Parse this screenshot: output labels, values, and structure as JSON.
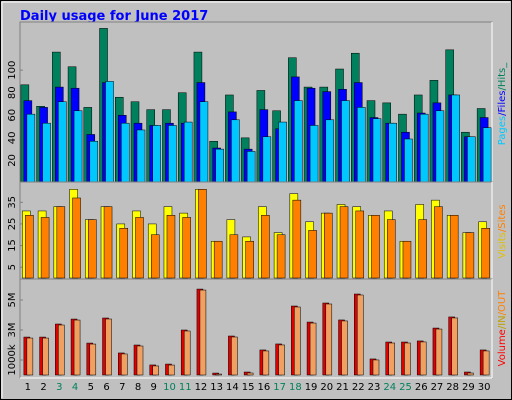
{
  "chart_data": [
    {
      "type": "bar",
      "title": "Daily usage for June 2017",
      "ylim": [
        0,
        140
      ],
      "yticks": [
        20,
        40,
        60,
        80,
        100
      ],
      "y_label_parts": [
        {
          "text": "Pages",
          "color": "#00c8ff"
        },
        {
          "text": "/",
          "color": "#0000ff"
        },
        {
          "text": "Files",
          "color": "#0000ff"
        },
        {
          "text": "/",
          "color": "#00805c"
        },
        {
          "text": "Hits_",
          "color": "#00805c"
        }
      ],
      "series": [
        {
          "name": "Hits",
          "color": "#00805c",
          "values": [
            87,
            68,
            116,
            103,
            67,
            137,
            76,
            72,
            65,
            65,
            80,
            116,
            37,
            78,
            40,
            82,
            64,
            111,
            85,
            85,
            101,
            115,
            73,
            71,
            61,
            78,
            91,
            118,
            45,
            66
          ]
        },
        {
          "name": "Files",
          "color": "#0000ff",
          "values": [
            73,
            67,
            85,
            84,
            43,
            89,
            60,
            53,
            51,
            53,
            53,
            89,
            31,
            63,
            30,
            65,
            48,
            94,
            84,
            81,
            83,
            89,
            58,
            53,
            45,
            62,
            71,
            78,
            41,
            58
          ]
        },
        {
          "name": "Pages",
          "color": "#00c8ff",
          "values": [
            61,
            53,
            72,
            64,
            37,
            90,
            53,
            47,
            51,
            51,
            54,
            72,
            30,
            56,
            28,
            41,
            54,
            73,
            51,
            56,
            73,
            67,
            57,
            53,
            39,
            61,
            64,
            78,
            41,
            49
          ]
        }
      ]
    },
    {
      "type": "bar",
      "ylim": [
        0,
        43
      ],
      "yticks": [
        5,
        15,
        25,
        35
      ],
      "y_label_parts": [
        {
          "text": "Visits",
          "color": "#e0c000"
        },
        {
          "text": "/",
          "color": "#ff8000"
        },
        {
          "text": "Sites",
          "color": "#ff8000"
        }
      ],
      "series": [
        {
          "name": "Visits",
          "color": "#ffff00",
          "values": [
            31,
            31,
            33,
            41,
            27,
            33,
            25,
            31,
            25,
            33,
            30,
            41,
            17,
            27,
            19,
            33,
            21,
            39,
            26,
            30,
            34,
            33,
            29,
            31,
            17,
            34,
            36,
            29,
            21,
            26
          ]
        },
        {
          "name": "Sites",
          "color": "#ff8000",
          "values": [
            29,
            28,
            33,
            37,
            27,
            33,
            23,
            28,
            20,
            29,
            28,
            41,
            17,
            20,
            17,
            29,
            20,
            36,
            22,
            30,
            33,
            31,
            29,
            27,
            17,
            27,
            33,
            29,
            21,
            23
          ]
        }
      ]
    },
    {
      "type": "bar",
      "ylim": [
        0,
        6200
      ],
      "yticks": [
        {
          "value": 1000,
          "label": "1000k"
        },
        {
          "value": 3000,
          "label": "3M"
        },
        {
          "value": 5000,
          "label": "5M"
        }
      ],
      "y_label_parts": [
        {
          "text": "Volume",
          "color": "#ff0000"
        },
        {
          "text": "/",
          "color": "#c0a000"
        },
        {
          "text": "IN",
          "color": "#c0a000"
        },
        {
          "text": "/",
          "color": "#ff8000"
        },
        {
          "text": "OUT",
          "color": "#ff8000"
        }
      ],
      "categories": [
        "1",
        "2",
        "3",
        "4",
        "5",
        "6",
        "7",
        "8",
        "9",
        "10",
        "11",
        "12",
        "13",
        "14",
        "15",
        "16",
        "17",
        "18",
        "19",
        "20",
        "21",
        "22",
        "23",
        "24",
        "25",
        "26",
        "27",
        "28",
        "29",
        "30"
      ],
      "category_colors": [
        "#000000",
        "#000000",
        "#00805c",
        "#00805c",
        "#000000",
        "#000000",
        "#000000",
        "#000000",
        "#000000",
        "#00805c",
        "#00805c",
        "#000000",
        "#000000",
        "#000000",
        "#000000",
        "#000000",
        "#00805c",
        "#00805c",
        "#000000",
        "#000000",
        "#000000",
        "#000000",
        "#000000",
        "#00805c",
        "#00805c",
        "#000000",
        "#000000",
        "#000000",
        "#000000",
        "#000000"
      ],
      "series": [
        {
          "name": "Volume",
          "color": "#e00000",
          "inner_color": "#f0a060",
          "values": [
            2530,
            2530,
            3400,
            3730,
            2130,
            3800,
            1470,
            2000,
            670,
            730,
            3000,
            5730,
            130,
            2600,
            200,
            1670,
            2070,
            4600,
            3530,
            4800,
            3670,
            5400,
            1070,
            2200,
            2200,
            2270,
            3130,
            3870,
            200,
            1670
          ]
        }
      ]
    }
  ]
}
